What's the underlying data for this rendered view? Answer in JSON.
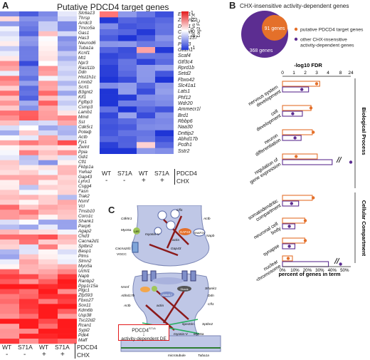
{
  "panel_a": {
    "letter": "A",
    "title": "Putative PDCD4 target genes",
    "left_genes": [
      "Slc6a13",
      "Thrsp",
      "Arrdc3",
      "Tmco5a",
      "Gas1",
      "Has3",
      "Neurod6",
      "Tuba1a",
      "Kcnf1",
      "Mt1",
      "Npr3",
      "Rasl11b",
      "Ddn",
      "Hist1h1c",
      "Lmnb2",
      "Scrt1",
      "B3gnt2",
      "Kif1",
      "Fgfbp3",
      "Csmp3",
      "Lamb1",
      "Mmd",
      "Sst",
      "Cdk5r1",
      "Poteф",
      "Actb",
      "Fjx1",
      "Zwint",
      "Ppia",
      "Gdi1",
      "Cfl1",
      "Fkbp1a",
      "Ywhaz",
      "Gap43",
      "Lynx1",
      "Csgg4",
      "Fasn",
      "Trak2",
      "Nsmf",
      "Vcl",
      "Tmsb10",
      "Coro1c",
      "Shank1",
      "Parp6",
      "Agap2",
      "Chd3",
      "Cacna2d1",
      "Sptbn2",
      "Basp1",
      "Ptms",
      "Stmn2",
      "Myo5a",
      "Uchl1",
      "Napb",
      "Ranbp2",
      "Ppp1r15a",
      "Plgc1",
      "Zfp593",
      "Fbxo27",
      "Sox11",
      "Kdm6b",
      "Usp38",
      "Tsc22d2",
      "Rcan1",
      "Sypl2",
      "Pdk4",
      "Maff"
    ],
    "right_genes": [
      "Efhd1",
      "Zscan22",
      "Dido1",
      "Cactin",
      "Ccdc137",
      "Phf13",
      "Gtf2h1",
      "Scaf4",
      "Gtf3c4",
      "Rprd1b",
      "Setd2",
      "Fbxo42",
      "Slc41a1",
      "Lats1",
      "Phf12",
      "Wdr20",
      "Ammecr1l",
      "Brd1",
      "Rbbp6",
      "Naa30",
      "Dnttip2",
      "Abhd17b",
      "Pcdh1",
      "Sstr2"
    ],
    "conditions": [
      "WT",
      "S71A",
      "WT",
      "S71A"
    ],
    "pdcd4_label": "PDCD4",
    "chx_label": "CHX",
    "chx_signs": [
      "-",
      "-",
      "+",
      "+"
    ],
    "legend_title": "BIC vs TTX\nLog2 FC",
    "legend_ticks": [
      "1",
      "0",
      "-1"
    ]
  },
  "panel_b": {
    "letter": "B",
    "title": "CHX-insensitive activity-dependent genes",
    "venn_inner": "91 genes",
    "venn_outer": "368 genes",
    "legend_putative": "putative PDCD4 target genes",
    "legend_other": "other CHX-insensitive activity-dependent genes",
    "fdr_label": "-log10 FDR",
    "fdr_ticks": [
      "0",
      "1",
      "2",
      "3",
      "4",
      "8",
      "24"
    ],
    "pct_ticks": [
      "0%",
      "10%",
      "20%",
      "30%",
      "40%",
      "50%"
    ],
    "xlabel": "percent of genes in term",
    "group_bp": "Biological Process",
    "group_cc": "Cellular Compartment",
    "terms": [
      {
        "label": "nervous system development",
        "pdcd4_pct": 30,
        "other_pct": 21,
        "pdcd4_fdr": 3.0,
        "other_fdr": 1.7
      },
      {
        "label": "cell development",
        "pdcd4_pct": 23,
        "other_pct": 16,
        "pdcd4_fdr": 2.5,
        "other_fdr": 0.9
      },
      {
        "label": "neuron differentiation",
        "pdcd4_pct": 24,
        "other_pct": 15,
        "pdcd4_fdr": 2.7,
        "other_fdr": 1.1
      },
      {
        "label": "regulation of gene expression",
        "pdcd4_pct": 28,
        "other_pct": 40,
        "pdcd4_fdr": 1.2,
        "other_fdr": 24
      },
      {
        "label": "somatodendritic compartment",
        "pdcd4_pct": 24,
        "other_pct": 13,
        "pdcd4_fdr": 2.7,
        "other_fdr": 0.8
      },
      {
        "label": "neuronal cell body",
        "pdcd4_pct": 18,
        "other_pct": 10,
        "pdcd4_fdr": 2.0,
        "other_fdr": 0.6
      },
      {
        "label": "synapse",
        "pdcd4_pct": 18,
        "other_pct": 10,
        "pdcd4_fdr": 2.0,
        "other_fdr": 0.6
      },
      {
        "label": "nuclear chromosome",
        "pdcd4_pct": 8,
        "other_pct": 37,
        "pdcd4_fdr": 0.5,
        "other_fdr": 8
      }
    ]
  },
  "panel_c": {
    "letter": "C",
    "labels": {
      "cfl1": "Cfl1",
      "actin_top": "actin",
      "actb_top": "Actb",
      "cdk5r1": "Cdk5r1",
      "myo5a_top": "Myo5a",
      "myosin_v": "myosin-V",
      "gap43": "Gap43",
      "snap25": "SNAP25",
      "napb": "Napb",
      "cacna2d1": "Cacna2d1",
      "vgcc": "VGCC",
      "lc8": "L8S",
      "synapse_protein": "GAP43",
      "nsmf": "Nsmf",
      "abhd17b": "Abhd17b",
      "shank1": "Shank1",
      "actb_bottom": "Actb",
      "cfl1_b": "Cfl1",
      "actin_bottom": "actin",
      "cofilin_b": "Cfl1",
      "ddn": "Ddn",
      "sptbn2": "Sptbn2",
      "spectrin": "spectrin",
      "myo5a_b": "Myo5a",
      "myosin_b": "myosin-V",
      "microtubule": "microtubule",
      "tuba1a": "Tuba1a",
      "psd": "PSD",
      "abhd": "Abhd17",
      "jacob": "Jacob",
      "shank": "Shank"
    },
    "box_line1": "PDCD4",
    "box_sup": "S71A",
    "box_line2": "activity-dependent DE"
  },
  "colors": {
    "red": "#e31a1c",
    "blue": "#1f35d6",
    "orange": "#e4702a",
    "purple": "#5c2d91"
  }
}
